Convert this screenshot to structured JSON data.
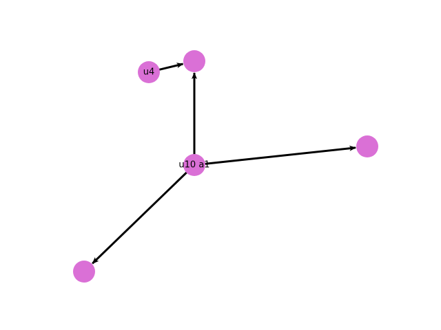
{
  "graph": {
    "directed": true,
    "node_color": "#da70d6",
    "edge_color": "#000000",
    "label_color": "#000000",
    "background": "#ffffff",
    "nodes": [
      {
        "id": "center",
        "label": "u10 a1"
      },
      {
        "id": "top",
        "label": ""
      },
      {
        "id": "u4",
        "label": "u4"
      },
      {
        "id": "right",
        "label": ""
      },
      {
        "id": "bottom-left",
        "label": ""
      }
    ],
    "edges": [
      {
        "source": "u4",
        "target": "top"
      },
      {
        "source": "center",
        "target": "top"
      },
      {
        "source": "center",
        "target": "right"
      },
      {
        "source": "center",
        "target": "bottom-left"
      }
    ]
  }
}
